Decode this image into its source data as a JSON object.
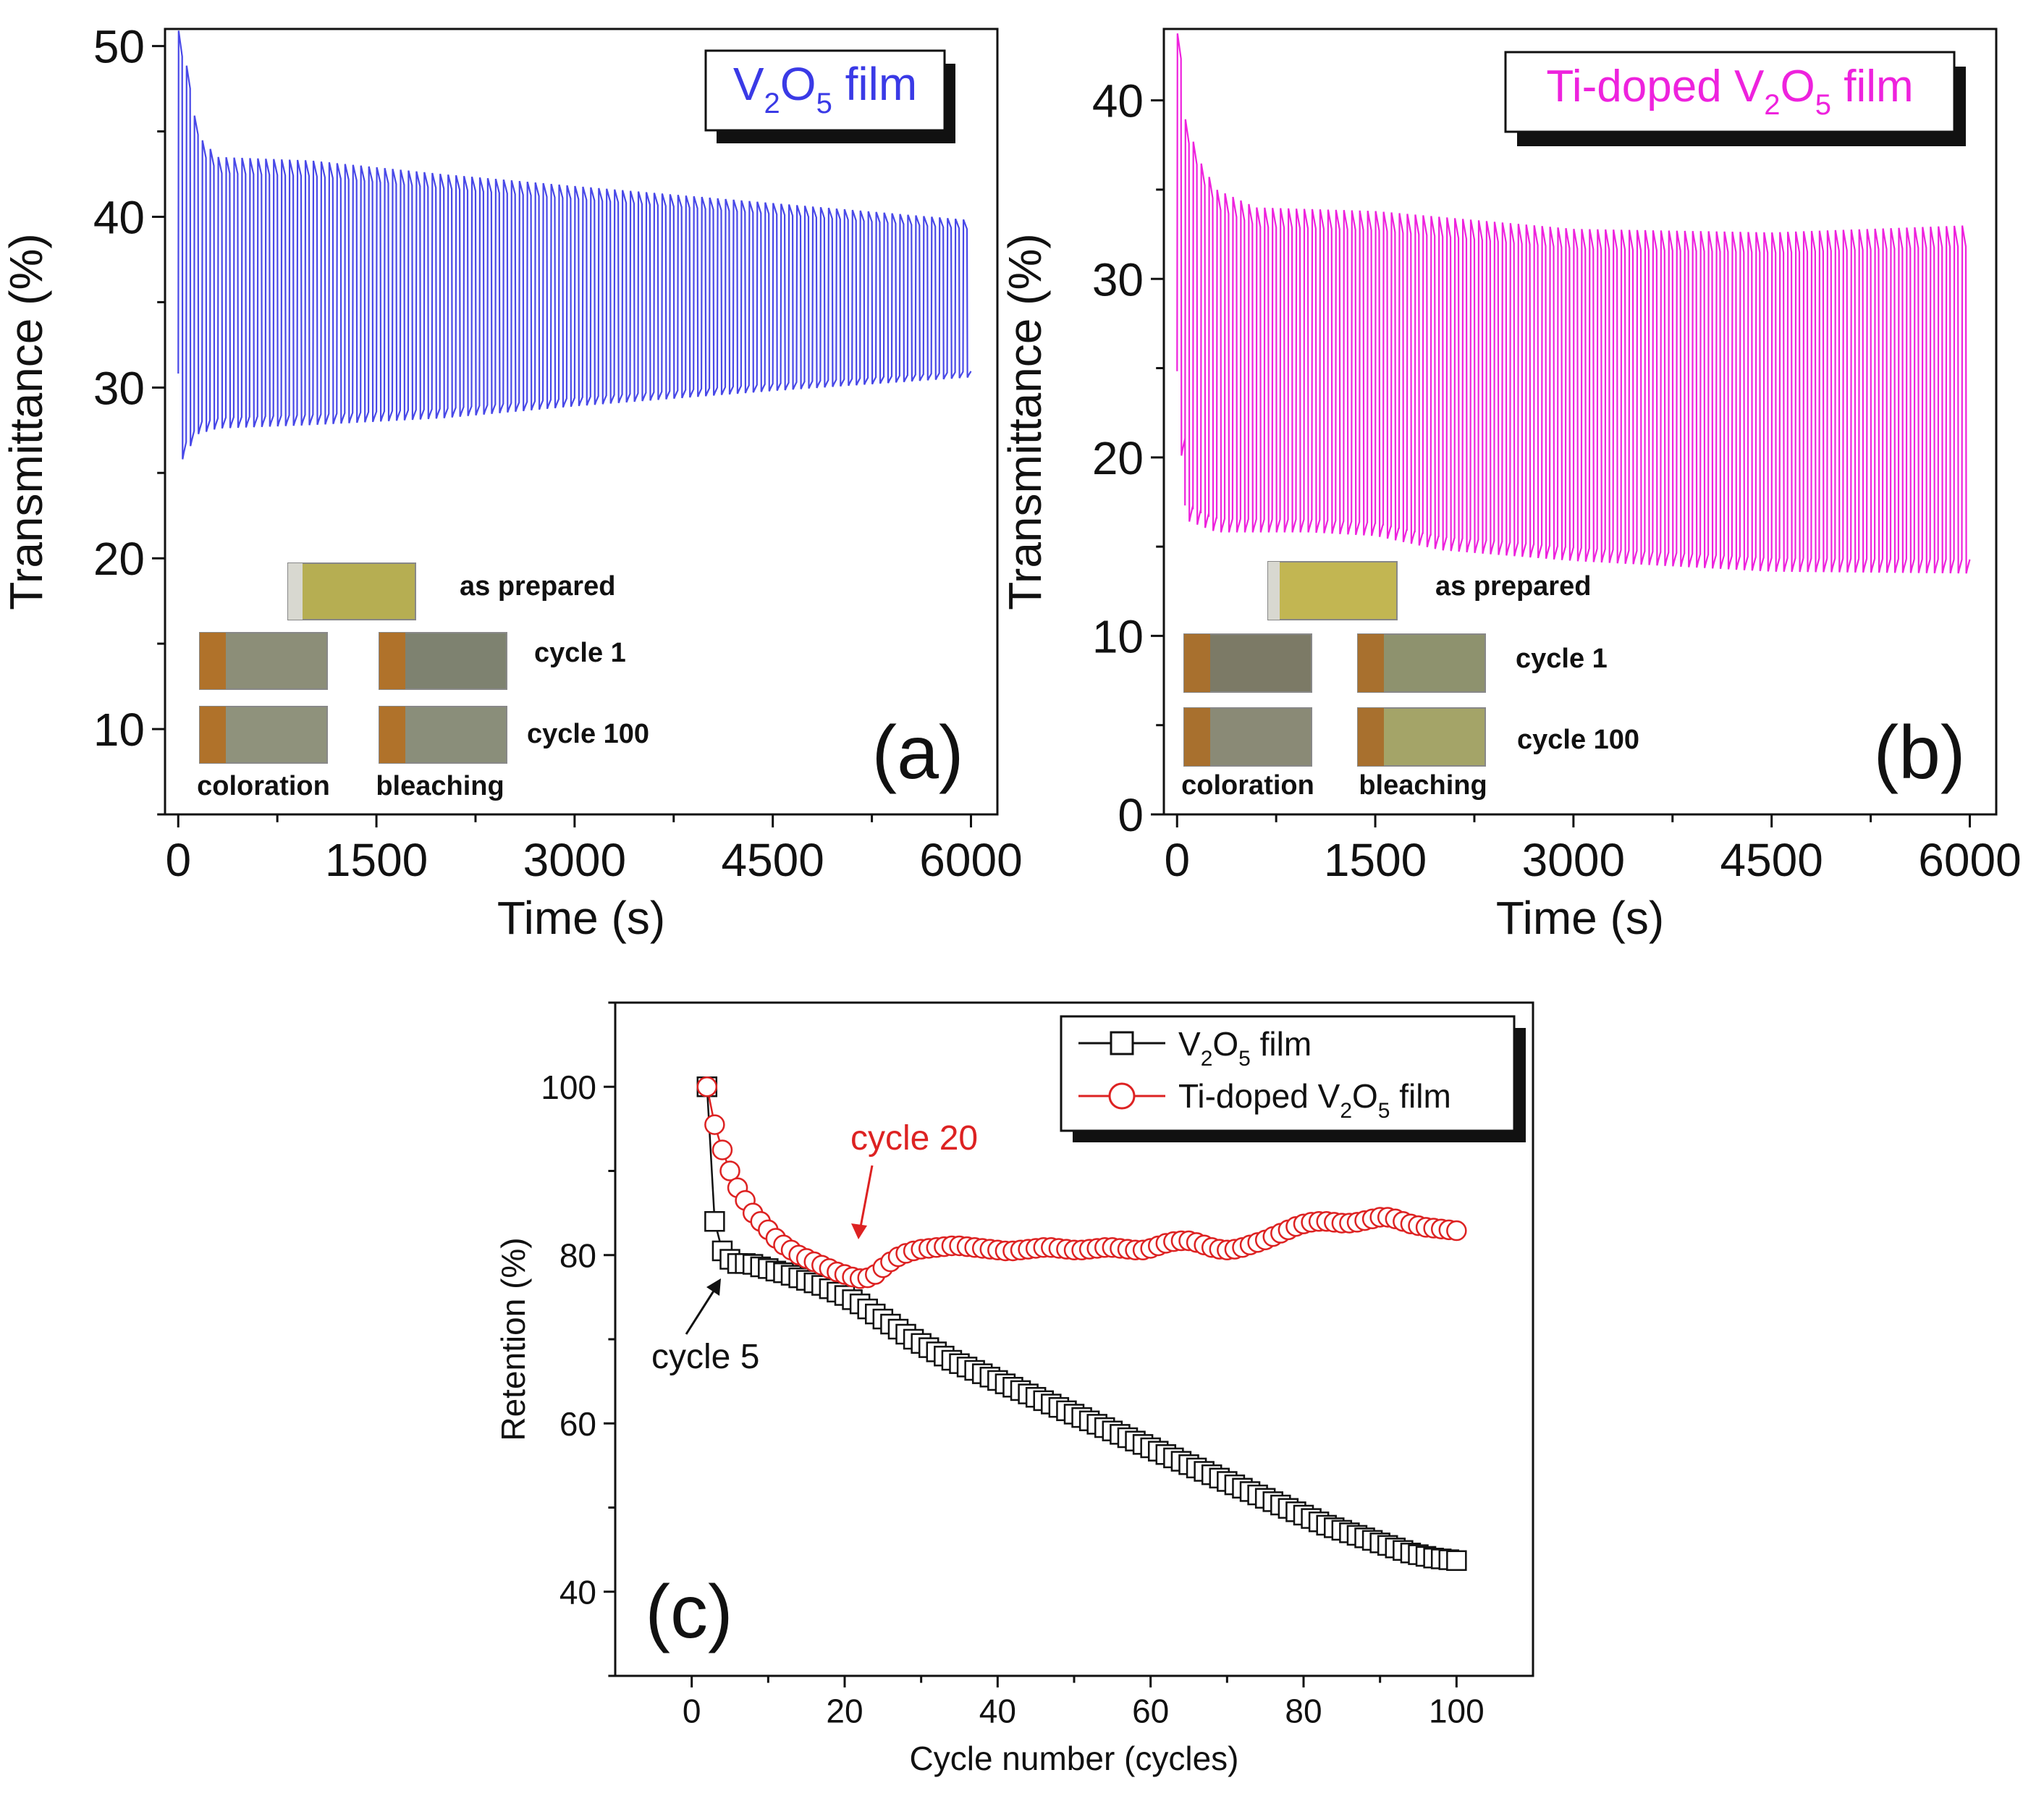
{
  "figure": {
    "description_title": "Electrochromic cycling of V2O5 and Ti-doped V2O5 films"
  },
  "panel_a": {
    "label": "(a)",
    "legend": {
      "prefix": "V",
      "sub1": "2",
      "mid": "O",
      "sub2": "5",
      "suffix": " film"
    },
    "inset": {
      "as_prepared": "as prepared",
      "cycle1": "cycle 1",
      "cycle100": "cycle 100",
      "coloration": "coloration",
      "bleaching": "bleaching"
    }
  },
  "panel_b": {
    "label": "(b)",
    "legend": {
      "prefix": "Ti-doped V",
      "sub1": "2",
      "mid": "O",
      "sub2": "5",
      "suffix": " film"
    },
    "inset": {
      "as_prepared": "as prepared",
      "cycle1": "cycle 1",
      "cycle100": "cycle 100",
      "coloration": "coloration",
      "bleaching": "bleaching"
    }
  },
  "panel_c": {
    "label": "(c)",
    "legend": [
      {
        "prefix": "V",
        "sub1": "2",
        "mid": "O",
        "sub2": "5",
        "suffix": " film"
      },
      {
        "prefix": "Ti-doped V",
        "sub1": "2",
        "mid": "O",
        "sub2": "5",
        "suffix": " film"
      }
    ],
    "annotations": {
      "cycle5": "cycle 5",
      "cycle20": "cycle 20"
    }
  },
  "colors": {
    "v2o5": "#4848e8",
    "ti": "#ee22dd",
    "black": "#111111",
    "red": "#dd2222",
    "sample_yellow": "#b6ae52",
    "sample_color": "#8c8e78",
    "sample_bleach": "#7e8270",
    "contact": "#b0722a"
  },
  "chart_data": [
    {
      "type": "line",
      "id": "a",
      "title": "V2O5 film",
      "xlabel": "Time (s)",
      "ylabel": "Transmittance (%)",
      "xlim": [
        -100,
        6200
      ],
      "ylim": [
        5,
        51
      ],
      "xticks": [
        0,
        1500,
        3000,
        4500,
        6000
      ],
      "yticks": [
        10,
        20,
        30,
        40,
        50
      ],
      "series": [
        {
          "name": "V2O5 film",
          "cycles": 100,
          "period_s": 60,
          "bleached_max_vs_time": [
            [
              0,
              51
            ],
            [
              60,
              49
            ],
            [
              120,
              46
            ],
            [
              180,
              44.5
            ],
            [
              300,
              43.5
            ],
            [
              1000,
              43.3
            ],
            [
              2000,
              42.5
            ],
            [
              3000,
              41.8
            ],
            [
              4500,
              40.8
            ],
            [
              6000,
              39.8
            ]
          ],
          "colored_min_vs_time": [
            [
              0,
              25.8
            ],
            [
              60,
              25.8
            ],
            [
              120,
              27.2
            ],
            [
              300,
              27.6
            ],
            [
              1000,
              27.8
            ],
            [
              2000,
              28.2
            ],
            [
              3000,
              28.9
            ],
            [
              4500,
              29.8
            ],
            [
              6000,
              30.6
            ]
          ]
        }
      ]
    },
    {
      "type": "line",
      "id": "b",
      "title": "Ti-doped V2O5 film",
      "xlabel": "Time (s)",
      "ylabel": "Transmittance (%)",
      "xlim": [
        -100,
        6200
      ],
      "ylim": [
        0,
        44
      ],
      "xticks": [
        0,
        1500,
        3000,
        4500,
        6000
      ],
      "yticks": [
        0,
        10,
        20,
        30,
        40
      ],
      "series": [
        {
          "name": "Ti-doped V2O5 film",
          "cycles": 100,
          "period_s": 60,
          "bleached_max_vs_time": [
            [
              0,
              44
            ],
            [
              60,
              39
            ],
            [
              180,
              36.5
            ],
            [
              300,
              35
            ],
            [
              600,
              34
            ],
            [
              1500,
              33.8
            ],
            [
              3000,
              32.8
            ],
            [
              4500,
              32.6
            ],
            [
              6000,
              33
            ]
          ],
          "colored_min_vs_time": [
            [
              0,
              24.5
            ],
            [
              60,
              16.5
            ],
            [
              300,
              15.8
            ],
            [
              1000,
              15.8
            ],
            [
              1500,
              15.6
            ],
            [
              2000,
              14.8
            ],
            [
              3000,
              14.2
            ],
            [
              4500,
              13.6
            ],
            [
              6000,
              13.5
            ]
          ]
        }
      ]
    },
    {
      "type": "scatter",
      "id": "c",
      "xlabel": "Cycle number (cycles)",
      "ylabel": "Retention (%)",
      "xlim": [
        -10,
        110
      ],
      "ylim": [
        30,
        110
      ],
      "xticks": [
        0,
        20,
        40,
        60,
        80,
        100
      ],
      "yticks": [
        40,
        60,
        80,
        100
      ],
      "series": [
        {
          "name": "V2O5 film",
          "marker": "square",
          "x": [
            2,
            3,
            4,
            5,
            6,
            7,
            8,
            9,
            10,
            11,
            12,
            13,
            14,
            15,
            16,
            17,
            18,
            19,
            20,
            21,
            22,
            23,
            24,
            25,
            26,
            27,
            28,
            29,
            30,
            31,
            32,
            33,
            34,
            35,
            36,
            37,
            38,
            39,
            40,
            41,
            42,
            43,
            44,
            45,
            46,
            47,
            48,
            49,
            50,
            51,
            52,
            53,
            54,
            55,
            56,
            57,
            58,
            59,
            60,
            61,
            62,
            63,
            64,
            65,
            66,
            67,
            68,
            69,
            70,
            71,
            72,
            73,
            74,
            75,
            76,
            77,
            78,
            79,
            80,
            81,
            82,
            83,
            84,
            85,
            86,
            87,
            88,
            89,
            90,
            91,
            92,
            93,
            94,
            95,
            96,
            97,
            98,
            99,
            100
          ],
          "y": [
            100,
            84,
            80.5,
            79.5,
            79,
            79,
            78.9,
            78.6,
            78.4,
            78.1,
            77.9,
            77.6,
            77.3,
            77,
            76.7,
            76.4,
            76,
            75.6,
            75.2,
            74.7,
            74.2,
            73.6,
            73,
            72.4,
            71.8,
            71.2,
            70.6,
            70,
            69.5,
            69,
            68.5,
            68,
            67.5,
            67.1,
            66.7,
            66.3,
            65.9,
            65.5,
            65.1,
            64.7,
            64.3,
            63.9,
            63.5,
            63.1,
            62.7,
            62.3,
            61.9,
            61.5,
            61.1,
            60.7,
            60.3,
            59.9,
            59.5,
            59.1,
            58.7,
            58.3,
            57.9,
            57.5,
            57.1,
            56.7,
            56.3,
            55.9,
            55.5,
            55.1,
            54.7,
            54.3,
            53.9,
            53.5,
            53.1,
            52.7,
            52.3,
            51.9,
            51.5,
            51.1,
            50.7,
            50.3,
            49.9,
            49.5,
            49.1,
            48.7,
            48.3,
            47.9,
            47.6,
            47.3,
            47,
            46.7,
            46.4,
            46.1,
            45.8,
            45.5,
            45.2,
            44.9,
            44.6,
            44.4,
            44.2,
            44,
            43.9,
            43.8,
            43.7
          ]
        },
        {
          "name": "Ti-doped V2O5 film",
          "marker": "circle",
          "x": [
            2,
            3,
            4,
            5,
            6,
            7,
            8,
            9,
            10,
            11,
            12,
            13,
            14,
            15,
            16,
            17,
            18,
            19,
            20,
            21,
            22,
            23,
            24,
            25,
            26,
            27,
            28,
            29,
            30,
            31,
            32,
            33,
            34,
            35,
            36,
            37,
            38,
            39,
            40,
            41,
            42,
            43,
            44,
            45,
            46,
            47,
            48,
            49,
            50,
            51,
            52,
            53,
            54,
            55,
            56,
            57,
            58,
            59,
            60,
            61,
            62,
            63,
            64,
            65,
            66,
            67,
            68,
            69,
            70,
            71,
            72,
            73,
            74,
            75,
            76,
            77,
            78,
            79,
            80,
            81,
            82,
            83,
            84,
            85,
            86,
            87,
            88,
            89,
            90,
            91,
            92,
            93,
            94,
            95,
            96,
            97,
            98,
            99,
            100
          ],
          "y": [
            100,
            95.5,
            92.5,
            90,
            88,
            86.5,
            85,
            84,
            83,
            82,
            81.2,
            80.6,
            80,
            79.6,
            79.2,
            78.8,
            78.4,
            78,
            77.7,
            77.4,
            77.2,
            77.3,
            77.7,
            78.5,
            79.2,
            79.8,
            80.2,
            80.5,
            80.7,
            80.8,
            80.9,
            81,
            81.1,
            81.1,
            81,
            80.9,
            80.8,
            80.7,
            80.6,
            80.5,
            80.5,
            80.6,
            80.7,
            80.8,
            80.9,
            80.9,
            80.8,
            80.7,
            80.6,
            80.6,
            80.7,
            80.8,
            80.9,
            80.9,
            80.8,
            80.7,
            80.6,
            80.6,
            80.8,
            81.1,
            81.4,
            81.6,
            81.7,
            81.7,
            81.5,
            81.2,
            80.9,
            80.7,
            80.6,
            80.7,
            80.9,
            81.2,
            81.5,
            81.8,
            82.2,
            82.6,
            83,
            83.4,
            83.7,
            83.9,
            84,
            84,
            83.9,
            83.8,
            83.8,
            83.9,
            84.1,
            84.3,
            84.5,
            84.5,
            84.3,
            84,
            83.7,
            83.5,
            83.3,
            83.2,
            83.1,
            83,
            82.9
          ]
        }
      ],
      "annotations": [
        {
          "text": "cycle 5",
          "points_to": [
            5,
            79.5
          ]
        },
        {
          "text": "cycle 20",
          "points_to": [
            20,
            77.7
          ]
        }
      ]
    }
  ]
}
